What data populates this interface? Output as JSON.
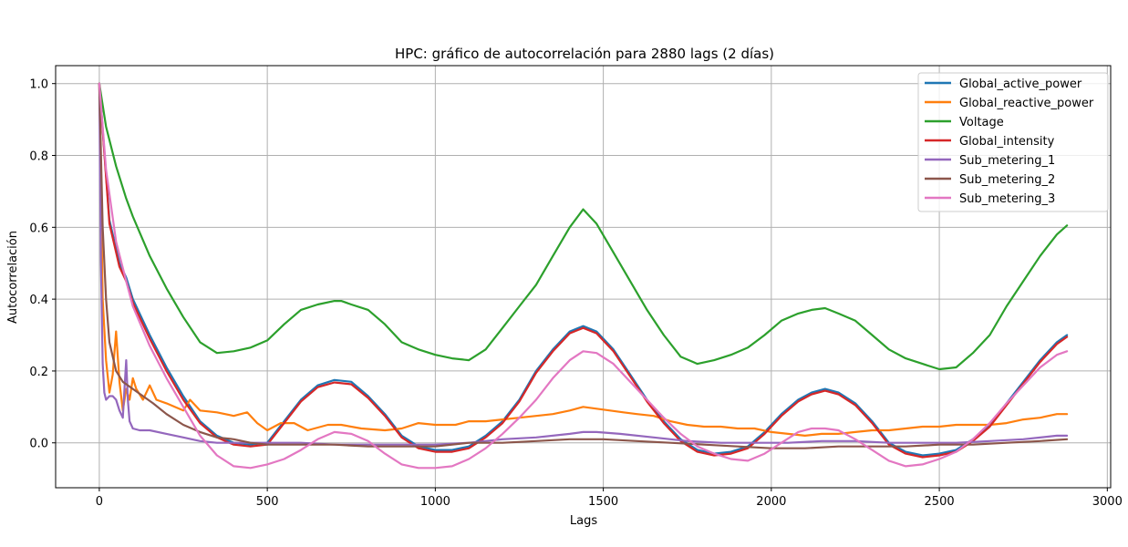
{
  "chart_data": {
    "type": "line",
    "title": "HPC: gráfico de autocorrelación para 2880 lags (2 días)",
    "xlabel": "Lags",
    "ylabel": "Autocorrelación",
    "xlim": [
      -130,
      3010
    ],
    "ylim": [
      -0.125,
      1.05
    ],
    "xticks": [
      0,
      500,
      1000,
      1500,
      2000,
      2500,
      3000
    ],
    "yticks": [
      0.0,
      0.2,
      0.4,
      0.6,
      0.8,
      1.0
    ],
    "xtick_labels": [
      "0",
      "500",
      "1000",
      "1500",
      "2000",
      "2500",
      "3000"
    ],
    "ytick_labels": [
      "0.0",
      "0.2",
      "0.4",
      "0.6",
      "0.8",
      "1.0"
    ],
    "grid": true,
    "legend_position": "top-right",
    "series": [
      {
        "name": "Global_active_power",
        "color": "#1f77b4",
        "x": [
          0,
          30,
          60,
          80,
          100,
          150,
          200,
          250,
          300,
          350,
          400,
          450,
          500,
          550,
          600,
          650,
          700,
          750,
          800,
          850,
          900,
          950,
          1000,
          1050,
          1100,
          1150,
          1200,
          1250,
          1300,
          1350,
          1400,
          1440,
          1480,
          1530,
          1580,
          1630,
          1680,
          1730,
          1780,
          1830,
          1880,
          1930,
          1980,
          2030,
          2080,
          2120,
          2160,
          2200,
          2250,
          2300,
          2350,
          2400,
          2450,
          2500,
          2550,
          2600,
          2650,
          2700,
          2750,
          2800,
          2850,
          2880
        ],
        "y": [
          1.0,
          0.62,
          0.5,
          0.46,
          0.4,
          0.3,
          0.21,
          0.13,
          0.06,
          0.02,
          0.0,
          -0.005,
          0.0,
          0.06,
          0.12,
          0.16,
          0.175,
          0.17,
          0.13,
          0.08,
          0.02,
          -0.01,
          -0.02,
          -0.02,
          -0.01,
          0.02,
          0.06,
          0.12,
          0.2,
          0.26,
          0.31,
          0.325,
          0.31,
          0.26,
          0.19,
          0.12,
          0.06,
          0.01,
          -0.02,
          -0.03,
          -0.025,
          -0.01,
          0.03,
          0.08,
          0.12,
          0.14,
          0.15,
          0.14,
          0.11,
          0.06,
          0.0,
          -0.025,
          -0.035,
          -0.03,
          -0.02,
          0.01,
          0.05,
          0.11,
          0.17,
          0.23,
          0.28,
          0.3
        ]
      },
      {
        "name": "Global_reactive_power",
        "color": "#ff7f0e",
        "x": [
          0,
          10,
          20,
          30,
          40,
          50,
          60,
          70,
          80,
          90,
          100,
          110,
          130,
          150,
          170,
          200,
          250,
          270,
          300,
          350,
          400,
          440,
          470,
          500,
          540,
          580,
          620,
          680,
          720,
          780,
          850,
          900,
          950,
          1000,
          1060,
          1100,
          1150,
          1200,
          1250,
          1300,
          1350,
          1400,
          1440,
          1480,
          1520,
          1560,
          1600,
          1650,
          1700,
          1750,
          1800,
          1850,
          1900,
          1950,
          2000,
          2050,
          2100,
          2150,
          2200,
          2250,
          2300,
          2350,
          2400,
          2450,
          2500,
          2550,
          2600,
          2650,
          2700,
          2750,
          2800,
          2850,
          2880
        ],
        "y": [
          1.0,
          0.4,
          0.23,
          0.14,
          0.19,
          0.31,
          0.17,
          0.09,
          0.15,
          0.12,
          0.18,
          0.15,
          0.12,
          0.16,
          0.12,
          0.11,
          0.09,
          0.12,
          0.09,
          0.085,
          0.075,
          0.085,
          0.055,
          0.035,
          0.055,
          0.055,
          0.035,
          0.05,
          0.05,
          0.04,
          0.035,
          0.04,
          0.055,
          0.05,
          0.05,
          0.06,
          0.06,
          0.065,
          0.07,
          0.075,
          0.08,
          0.09,
          0.1,
          0.095,
          0.09,
          0.085,
          0.08,
          0.075,
          0.06,
          0.05,
          0.045,
          0.045,
          0.04,
          0.04,
          0.03,
          0.025,
          0.02,
          0.025,
          0.025,
          0.03,
          0.035,
          0.035,
          0.04,
          0.045,
          0.045,
          0.05,
          0.05,
          0.05,
          0.055,
          0.065,
          0.07,
          0.08,
          0.08
        ]
      },
      {
        "name": "Voltage",
        "color": "#2ca02c",
        "x": [
          0,
          20,
          50,
          80,
          100,
          150,
          200,
          250,
          300,
          350,
          400,
          450,
          500,
          550,
          600,
          650,
          700,
          720,
          750,
          800,
          850,
          900,
          950,
          1000,
          1050,
          1100,
          1150,
          1200,
          1250,
          1300,
          1350,
          1400,
          1440,
          1480,
          1530,
          1580,
          1630,
          1680,
          1730,
          1780,
          1830,
          1880,
          1930,
          1980,
          2030,
          2080,
          2120,
          2160,
          2200,
          2250,
          2300,
          2350,
          2400,
          2450,
          2500,
          2550,
          2600,
          2650,
          2700,
          2750,
          2800,
          2850,
          2880
        ],
        "y": [
          1.0,
          0.88,
          0.77,
          0.68,
          0.63,
          0.52,
          0.43,
          0.35,
          0.28,
          0.25,
          0.255,
          0.265,
          0.285,
          0.33,
          0.37,
          0.385,
          0.395,
          0.395,
          0.385,
          0.37,
          0.33,
          0.28,
          0.26,
          0.245,
          0.235,
          0.23,
          0.26,
          0.32,
          0.38,
          0.44,
          0.52,
          0.6,
          0.65,
          0.61,
          0.53,
          0.45,
          0.37,
          0.3,
          0.24,
          0.22,
          0.23,
          0.245,
          0.265,
          0.3,
          0.34,
          0.36,
          0.37,
          0.375,
          0.36,
          0.34,
          0.3,
          0.26,
          0.235,
          0.22,
          0.205,
          0.21,
          0.25,
          0.3,
          0.38,
          0.45,
          0.52,
          0.58,
          0.605
        ]
      },
      {
        "name": "Global_intensity",
        "color": "#d62728",
        "x": [
          0,
          30,
          60,
          80,
          100,
          150,
          200,
          250,
          300,
          350,
          400,
          450,
          500,
          550,
          600,
          650,
          700,
          750,
          800,
          850,
          900,
          950,
          1000,
          1050,
          1100,
          1150,
          1200,
          1250,
          1300,
          1350,
          1400,
          1440,
          1480,
          1530,
          1580,
          1630,
          1680,
          1730,
          1780,
          1830,
          1880,
          1930,
          1980,
          2030,
          2080,
          2120,
          2160,
          2200,
          2250,
          2300,
          2350,
          2400,
          2450,
          2500,
          2550,
          2600,
          2650,
          2700,
          2750,
          2800,
          2850,
          2880
        ],
        "y": [
          1.0,
          0.61,
          0.49,
          0.45,
          0.39,
          0.29,
          0.2,
          0.12,
          0.055,
          0.015,
          -0.005,
          -0.01,
          -0.005,
          0.055,
          0.115,
          0.155,
          0.168,
          0.163,
          0.125,
          0.075,
          0.015,
          -0.015,
          -0.025,
          -0.025,
          -0.015,
          0.015,
          0.055,
          0.115,
          0.195,
          0.255,
          0.305,
          0.32,
          0.305,
          0.255,
          0.185,
          0.115,
          0.055,
          0.005,
          -0.025,
          -0.035,
          -0.03,
          -0.015,
          0.025,
          0.075,
          0.115,
          0.135,
          0.145,
          0.135,
          0.105,
          0.055,
          -0.005,
          -0.03,
          -0.04,
          -0.035,
          -0.025,
          0.005,
          0.045,
          0.105,
          0.165,
          0.225,
          0.275,
          0.295
        ]
      },
      {
        "name": "Sub_metering_1",
        "color": "#9467bd",
        "x": [
          0,
          5,
          10,
          15,
          20,
          30,
          40,
          50,
          60,
          70,
          75,
          80,
          85,
          90,
          100,
          120,
          150,
          200,
          250,
          300,
          350,
          400,
          500,
          600,
          700,
          800,
          900,
          1000,
          1100,
          1200,
          1300,
          1400,
          1440,
          1480,
          1550,
          1650,
          1750,
          1850,
          1950,
          2050,
          2150,
          2250,
          2350,
          2450,
          2550,
          2650,
          2750,
          2850,
          2880
        ],
        "y": [
          1.0,
          0.5,
          0.22,
          0.14,
          0.12,
          0.13,
          0.13,
          0.12,
          0.09,
          0.07,
          0.15,
          0.23,
          0.12,
          0.06,
          0.04,
          0.035,
          0.035,
          0.025,
          0.015,
          0.005,
          0.0,
          0.0,
          0.0,
          0.0,
          -0.005,
          -0.005,
          -0.005,
          -0.005,
          0.0,
          0.01,
          0.015,
          0.025,
          0.03,
          0.03,
          0.025,
          0.015,
          0.005,
          0.0,
          0.0,
          0.0,
          0.005,
          0.005,
          0.0,
          0.0,
          0.0,
          0.005,
          0.01,
          0.02,
          0.02
        ]
      },
      {
        "name": "Sub_metering_2",
        "color": "#8c564b",
        "x": [
          0,
          10,
          20,
          30,
          50,
          70,
          100,
          130,
          160,
          200,
          250,
          300,
          350,
          400,
          450,
          500,
          600,
          700,
          800,
          900,
          1000,
          1100,
          1200,
          1300,
          1400,
          1450,
          1500,
          1600,
          1700,
          1800,
          1900,
          2000,
          2100,
          2200,
          2300,
          2400,
          2500,
          2600,
          2700,
          2800,
          2880
        ],
        "y": [
          1.0,
          0.6,
          0.4,
          0.28,
          0.2,
          0.17,
          0.15,
          0.13,
          0.11,
          0.08,
          0.05,
          0.03,
          0.015,
          0.01,
          0.0,
          -0.005,
          -0.005,
          -0.005,
          -0.01,
          -0.01,
          -0.01,
          0.0,
          0.0,
          0.005,
          0.01,
          0.01,
          0.01,
          0.005,
          0.0,
          -0.005,
          -0.01,
          -0.015,
          -0.015,
          -0.01,
          -0.01,
          -0.01,
          -0.005,
          -0.005,
          0.0,
          0.005,
          0.01
        ]
      },
      {
        "name": "Sub_metering_3",
        "color": "#e377c2",
        "x": [
          0,
          20,
          50,
          80,
          100,
          150,
          200,
          250,
          300,
          350,
          400,
          450,
          500,
          550,
          600,
          650,
          700,
          750,
          800,
          850,
          900,
          950,
          1000,
          1050,
          1100,
          1150,
          1200,
          1250,
          1300,
          1350,
          1400,
          1440,
          1480,
          1530,
          1580,
          1630,
          1680,
          1730,
          1780,
          1830,
          1880,
          1930,
          1980,
          2030,
          2080,
          2120,
          2160,
          2200,
          2250,
          2300,
          2350,
          2400,
          2450,
          2500,
          2550,
          2600,
          2650,
          2700,
          2750,
          2800,
          2850,
          2880
        ],
        "y": [
          1.0,
          0.76,
          0.56,
          0.45,
          0.38,
          0.27,
          0.18,
          0.1,
          0.02,
          -0.035,
          -0.065,
          -0.07,
          -0.06,
          -0.045,
          -0.02,
          0.01,
          0.03,
          0.025,
          0.005,
          -0.03,
          -0.06,
          -0.07,
          -0.07,
          -0.065,
          -0.045,
          -0.015,
          0.025,
          0.07,
          0.12,
          0.18,
          0.23,
          0.255,
          0.25,
          0.22,
          0.17,
          0.12,
          0.07,
          0.025,
          -0.01,
          -0.03,
          -0.045,
          -0.05,
          -0.03,
          0.0,
          0.03,
          0.04,
          0.04,
          0.035,
          0.01,
          -0.02,
          -0.05,
          -0.065,
          -0.06,
          -0.045,
          -0.025,
          0.01,
          0.055,
          0.11,
          0.16,
          0.21,
          0.245,
          0.255
        ]
      }
    ]
  }
}
